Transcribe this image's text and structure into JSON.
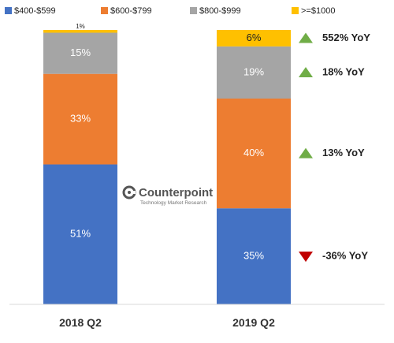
{
  "chart_data": {
    "type": "bar",
    "stacked": true,
    "percent": true,
    "categories": [
      "2018 Q2",
      "2019 Q2"
    ],
    "series": [
      {
        "name": "$400-$599",
        "color": "#4472c4",
        "values": [
          51,
          35
        ],
        "labels": [
          "51%",
          "35%"
        ]
      },
      {
        "name": "$600-$799",
        "color": "#ed7d31",
        "values": [
          33,
          40
        ],
        "labels": [
          "33%",
          "40%"
        ]
      },
      {
        "name": "$800-$999",
        "color": "#a5a5a5",
        "values": [
          15,
          19
        ],
        "labels": [
          "15%",
          "19%"
        ]
      },
      {
        "name": ">=$1000",
        "color": "#ffc000",
        "values": [
          1,
          6
        ],
        "labels": [
          "1%",
          "6%"
        ]
      }
    ],
    "legend_position": "top",
    "ylim": [
      0,
      100
    ],
    "annotations": [
      {
        "series": ">=$1000",
        "text": "552% YoY",
        "direction": "up",
        "color": "#70ad47"
      },
      {
        "series": "$800-$999",
        "text": "18% YoY",
        "direction": "up",
        "color": "#70ad47"
      },
      {
        "series": "$600-$799",
        "text": "13% YoY",
        "direction": "up",
        "color": "#70ad47"
      },
      {
        "series": "$400-$599",
        "text": "-36% YoY",
        "direction": "down",
        "color": "#c00000"
      }
    ]
  },
  "watermark": {
    "name": "Counterpoint",
    "tagline": "Technology Market Research"
  }
}
